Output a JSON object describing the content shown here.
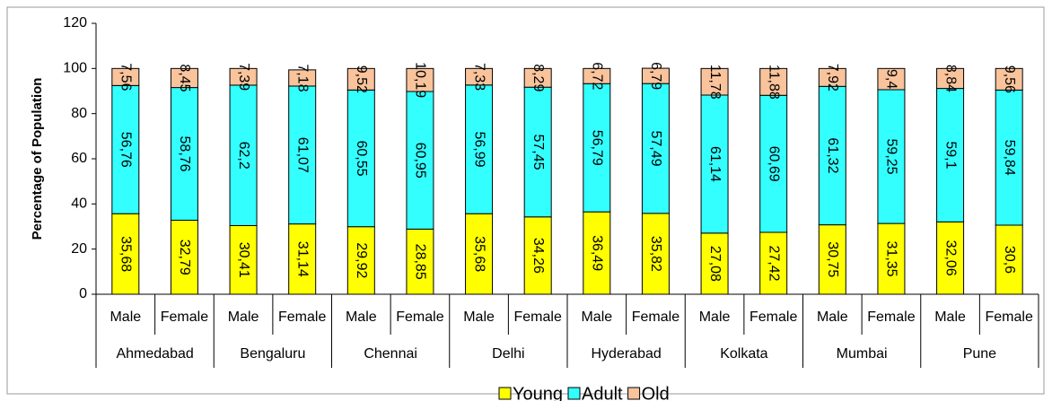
{
  "chart_data": {
    "type": "stacked_bar",
    "y_label": "Percentage of Population",
    "categories": [
      "Male",
      "Female",
      "Male",
      "Female",
      "Male",
      "Female",
      "Male",
      "Female",
      "Male",
      "Female",
      "Male",
      "Female",
      "Male",
      "Female",
      "Male",
      "Female"
    ],
    "groups": [
      "Ahmedabad",
      "Bengaluru",
      "Chennai",
      "Delhi",
      "Hyderabad",
      "Kolkata",
      "Mumbai",
      "Pune"
    ],
    "series": [
      {
        "name": "Young",
        "color": "#ffff00",
        "values": [
          35.68,
          32.79,
          30.41,
          31.14,
          29.92,
          28.85,
          35.68,
          34.26,
          36.49,
          35.82,
          27.08,
          27.42,
          30.75,
          31.35,
          32.06,
          30.6
        ],
        "value_labels": [
          "35,68",
          "32,79",
          "30,41",
          "31,14",
          "29,92",
          "28,85",
          "35,68",
          "34,26",
          "36,49",
          "35,82",
          "27,08",
          "27,42",
          "30,75",
          "31,35",
          "32,06",
          "30,6"
        ]
      },
      {
        "name": "Adult",
        "color": "#33ffff",
        "values": [
          56.76,
          58.76,
          62.2,
          61.07,
          60.55,
          60.95,
          56.99,
          57.45,
          56.79,
          57.49,
          61.14,
          60.69,
          61.32,
          59.25,
          59.1,
          59.84
        ],
        "value_labels": [
          "56,76",
          "58,76",
          "62,2",
          "61,07",
          "60,55",
          "60,95",
          "56,99",
          "57,45",
          "56,79",
          "57,49",
          "61,14",
          "60,69",
          "61,32",
          "59,25",
          "59,1",
          "59,84"
        ]
      },
      {
        "name": "Old",
        "color": "#f9c39b",
        "values": [
          7.56,
          8.45,
          7.39,
          7.18,
          9.52,
          10.19,
          7.33,
          8.29,
          6.72,
          6.79,
          11.78,
          11.88,
          7.92,
          9.4,
          8.84,
          9.56
        ],
        "value_labels": [
          "7,56",
          "8,45",
          "7,39",
          "7,18",
          "9,52",
          "10,19",
          "7,33",
          "8,29",
          "6,72",
          "6,79",
          "11,78",
          "11,88",
          "7,92",
          "9,4",
          "8,84",
          "9,56"
        ]
      }
    ],
    "ylim": [
      0,
      120
    ],
    "yticks": [
      0,
      20,
      40,
      60,
      80,
      100,
      120
    ],
    "grid": false,
    "legend": "bottom"
  }
}
